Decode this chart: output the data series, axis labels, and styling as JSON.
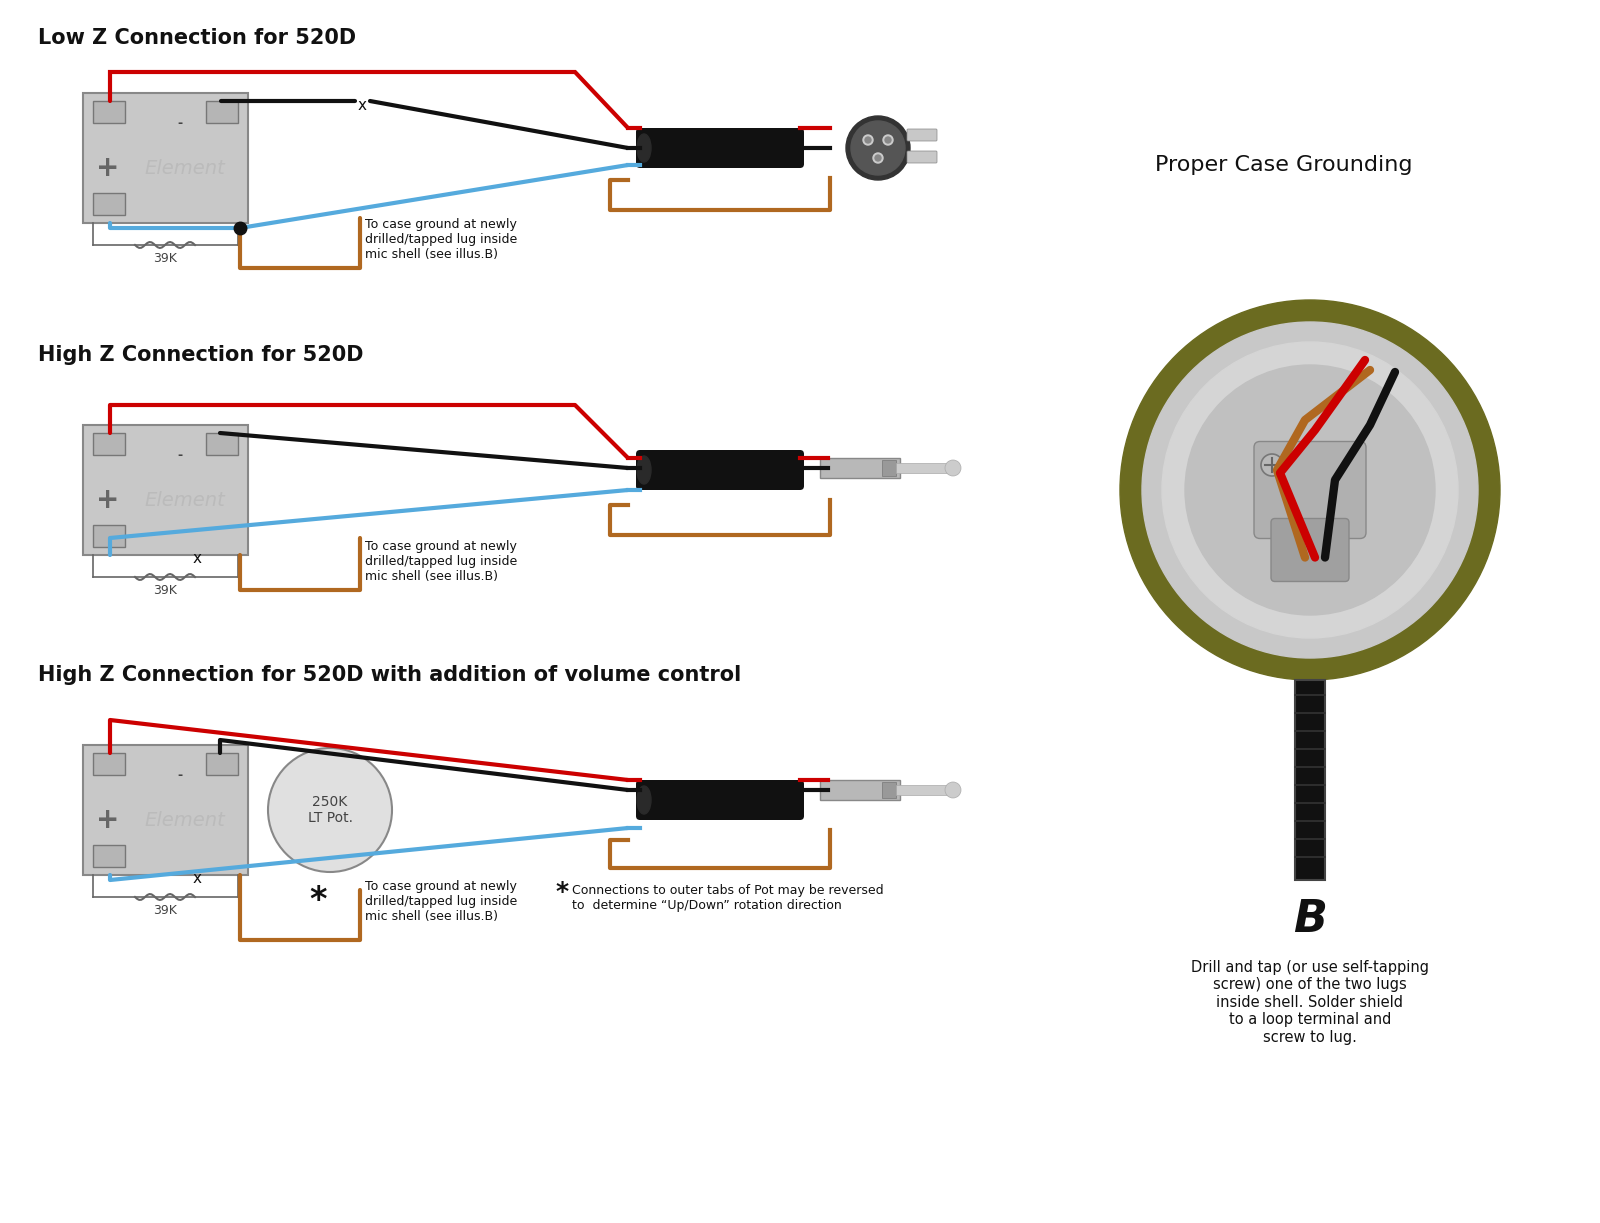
{
  "bg_color": "#ffffff",
  "title1": "Low Z Connection for 520D",
  "title2": "High Z Connection for 520D",
  "title3": "High Z Connection for 520D with addition of volume control",
  "title_right": "Proper Case Grounding",
  "label_39k": "39K",
  "label_element": "Element",
  "label_plus": "+",
  "label_minus": "-",
  "label_250k": "250K\nLT Pot.",
  "text_case_ground1": "To case ground at newly\ndrilled/tapped lug inside\nmic shell (see illus.B)",
  "text_case_ground2": "To case ground at newly\ndrilled/tapped lug inside\nmic shell (see illus.B)",
  "text_case_ground3": "To case ground at newly\ndrilled/tapped lug inside\nmic shell (see illus.B)",
  "text_b": "B",
  "text_drill": "Drill and tap (or use self-tapping\nscrew) one of the two lugs\ninside shell. Solder shield\nto a loop terminal and\nscrew to lug.",
  "text_connections": "Connections to outer tabs of Pot may be reversed\nto  determine “Up/Down” rotation direction",
  "colors": {
    "red": "#cc0000",
    "black": "#111111",
    "blue": "#55aadd",
    "orange": "#cc6600",
    "light_gray": "#d8d8d8",
    "gray": "#aaaaaa",
    "dark_gray": "#555555",
    "element_box": "#c8c8c8",
    "element_text": "#bbbbbb",
    "olive": "#6b6b20",
    "connector_dark": "#404040",
    "wire_brown": "#b06820"
  }
}
